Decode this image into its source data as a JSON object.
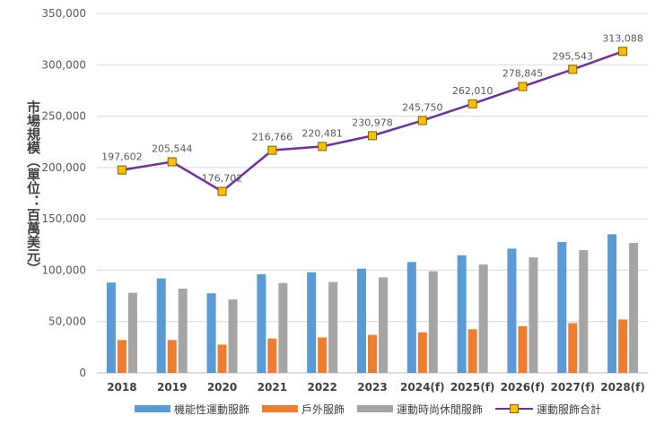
{
  "chart_data": {
    "type": "bar+line",
    "categories": [
      "2018",
      "2019",
      "2020",
      "2021",
      "2022",
      "2023",
      "2024(f)",
      "2025(f)",
      "2026(f)",
      "2027(f)",
      "2028(f)"
    ],
    "series": [
      {
        "name": "機能性運動服飾",
        "type": "bar",
        "color": "#5b9bd5",
        "values": [
          88000,
          92000,
          77500,
          96000,
          98000,
          101500,
          108000,
          114500,
          121000,
          127500,
          135000
        ]
      },
      {
        "name": "戶外服飾",
        "type": "bar",
        "color": "#ed7d31",
        "values": [
          32000,
          32000,
          27500,
          33500,
          34500,
          37000,
          39500,
          42500,
          45500,
          48500,
          52000
        ]
      },
      {
        "name": "運動時尚休閒服飾",
        "type": "bar",
        "color": "#a5a5a5",
        "values": [
          78000,
          82000,
          71500,
          87500,
          88500,
          93000,
          99000,
          105500,
          112500,
          119500,
          126500
        ]
      },
      {
        "name": "運動服飾合計",
        "type": "line",
        "color": "#7030a0",
        "marker_color": "#ffc000",
        "values": [
          197602,
          205544,
          176702,
          216766,
          220481,
          230978,
          245750,
          262010,
          278845,
          295543,
          313088
        ],
        "labels": [
          "197,602",
          "205,544",
          "176,702",
          "216,766",
          "220,481",
          "230,978",
          "245,750",
          "262,010",
          "278,845",
          "295,543",
          "313,088"
        ]
      }
    ],
    "ylabel": "市場規模（單位：百萬美元）",
    "ylim": [
      0,
      350000
    ],
    "yticks": [
      "0",
      "50,000",
      "100,000",
      "150,000",
      "200,000",
      "250,000",
      "300,000",
      "350,000"
    ],
    "grid": true,
    "legend": "bottom"
  }
}
